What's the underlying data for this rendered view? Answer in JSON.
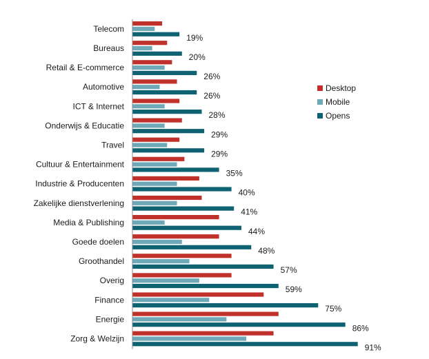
{
  "chart_data": {
    "type": "bar",
    "orientation": "horizontal",
    "categories": [
      "Telecom",
      "Bureaus",
      "Retail & E-commerce",
      "Automotive",
      "ICT & Internet",
      "Onderwijs & Educatie",
      "Travel",
      "Cultuur & Entertainment",
      "Industrie & Producenten",
      "Zakelijke dienstverlening",
      "Media & Publishing",
      "Goede doelen",
      "Groothandel",
      "Overig",
      "Finance",
      "Energie",
      "Zorg & Welzijn"
    ],
    "series": [
      {
        "name": "Desktop",
        "color": "#c0312b",
        "values": [
          12,
          14,
          16,
          18,
          19,
          20,
          19,
          21,
          27,
          28,
          35,
          35,
          40,
          40,
          53,
          59,
          57
        ]
      },
      {
        "name": "Mobile",
        "color": "#6fa9b8",
        "values": [
          9,
          8,
          13,
          11,
          13,
          13,
          14,
          18,
          18,
          18,
          13,
          20,
          23,
          27,
          31,
          38,
          46
        ]
      },
      {
        "name": "Opens",
        "color": "#0e6272",
        "values": [
          19,
          20,
          26,
          26,
          28,
          29,
          29,
          35,
          40,
          41,
          44,
          48,
          57,
          59,
          75,
          86,
          91
        ]
      }
    ],
    "value_labels": [
      "19%",
      "20%",
      "26%",
      "26%",
      "28%",
      "29%",
      "29%",
      "35%",
      "40%",
      "41%",
      "44%",
      "48%",
      "57%",
      "59%",
      "75%",
      "86%",
      "91%"
    ],
    "xlim": [
      0,
      100
    ],
    "legend": [
      "Desktop",
      "Mobile",
      "Opens"
    ],
    "legend_position": "right",
    "grid": false,
    "title": "",
    "xlabel": "",
    "ylabel": ""
  }
}
